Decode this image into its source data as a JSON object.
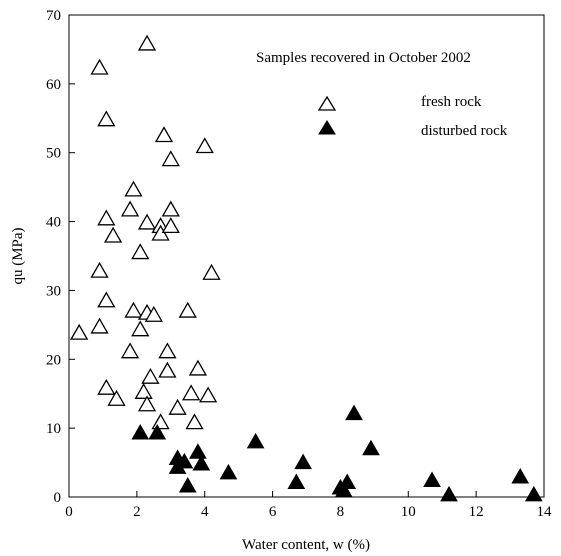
{
  "chart_data": {
    "type": "scatter",
    "title": "",
    "annotation": "Samples recovered in October 2002",
    "xlabel": "Water content, w (%)",
    "ylabel": "qu (MPa)",
    "xlim": [
      0,
      14
    ],
    "ylim": [
      0,
      70
    ],
    "xticks": [
      0,
      2,
      4,
      6,
      8,
      10,
      12,
      14
    ],
    "yticks": [
      0,
      10,
      20,
      30,
      40,
      50,
      60,
      70
    ],
    "grid": false,
    "legend": "top-right",
    "series": [
      {
        "name": "fresh rock",
        "marker": "open-triangle",
        "color": "#000000",
        "points": [
          [
            0.3,
            23.8
          ],
          [
            0.9,
            62.3
          ],
          [
            0.9,
            32.8
          ],
          [
            0.9,
            24.7
          ],
          [
            1.1,
            54.8
          ],
          [
            1.1,
            40.4
          ],
          [
            1.1,
            28.5
          ],
          [
            1.1,
            15.8
          ],
          [
            1.3,
            37.9
          ],
          [
            1.4,
            14.2
          ],
          [
            1.8,
            41.7
          ],
          [
            1.8,
            21.1
          ],
          [
            1.9,
            44.6
          ],
          [
            1.9,
            27.0
          ],
          [
            2.1,
            35.5
          ],
          [
            2.1,
            24.3
          ],
          [
            2.2,
            15.2
          ],
          [
            2.3,
            65.8
          ],
          [
            2.3,
            39.8
          ],
          [
            2.3,
            26.7
          ],
          [
            2.3,
            13.4
          ],
          [
            2.4,
            17.4
          ],
          [
            2.5,
            26.4
          ],
          [
            2.7,
            39.3
          ],
          [
            2.7,
            38.2
          ],
          [
            2.7,
            10.8
          ],
          [
            2.8,
            52.5
          ],
          [
            2.9,
            21.1
          ],
          [
            2.9,
            18.3
          ],
          [
            3.0,
            49.0
          ],
          [
            3.0,
            41.7
          ],
          [
            3.0,
            39.3
          ],
          [
            3.2,
            12.9
          ],
          [
            3.5,
            27.0
          ],
          [
            3.6,
            15.0
          ],
          [
            3.7,
            10.8
          ],
          [
            3.8,
            18.6
          ],
          [
            4.0,
            50.9
          ],
          [
            4.1,
            14.7
          ],
          [
            4.2,
            32.5
          ]
        ]
      },
      {
        "name": "disturbed rock",
        "marker": "filled-triangle",
        "color": "#000000",
        "points": [
          [
            2.1,
            9.3
          ],
          [
            2.6,
            9.3
          ],
          [
            3.2,
            5.6
          ],
          [
            3.2,
            4.3
          ],
          [
            3.4,
            5.1
          ],
          [
            3.5,
            1.6
          ],
          [
            3.8,
            6.5
          ],
          [
            3.9,
            4.8
          ],
          [
            4.7,
            3.5
          ],
          [
            5.5,
            8.0
          ],
          [
            6.7,
            2.1
          ],
          [
            6.9,
            5.0
          ],
          [
            8.0,
            1.3
          ],
          [
            8.1,
            0.9
          ],
          [
            8.2,
            2.1
          ],
          [
            8.4,
            12.1
          ],
          [
            8.9,
            7.0
          ],
          [
            10.7,
            2.4
          ],
          [
            11.2,
            0.3
          ],
          [
            13.3,
            2.9
          ],
          [
            13.7,
            0.3
          ]
        ]
      }
    ]
  }
}
